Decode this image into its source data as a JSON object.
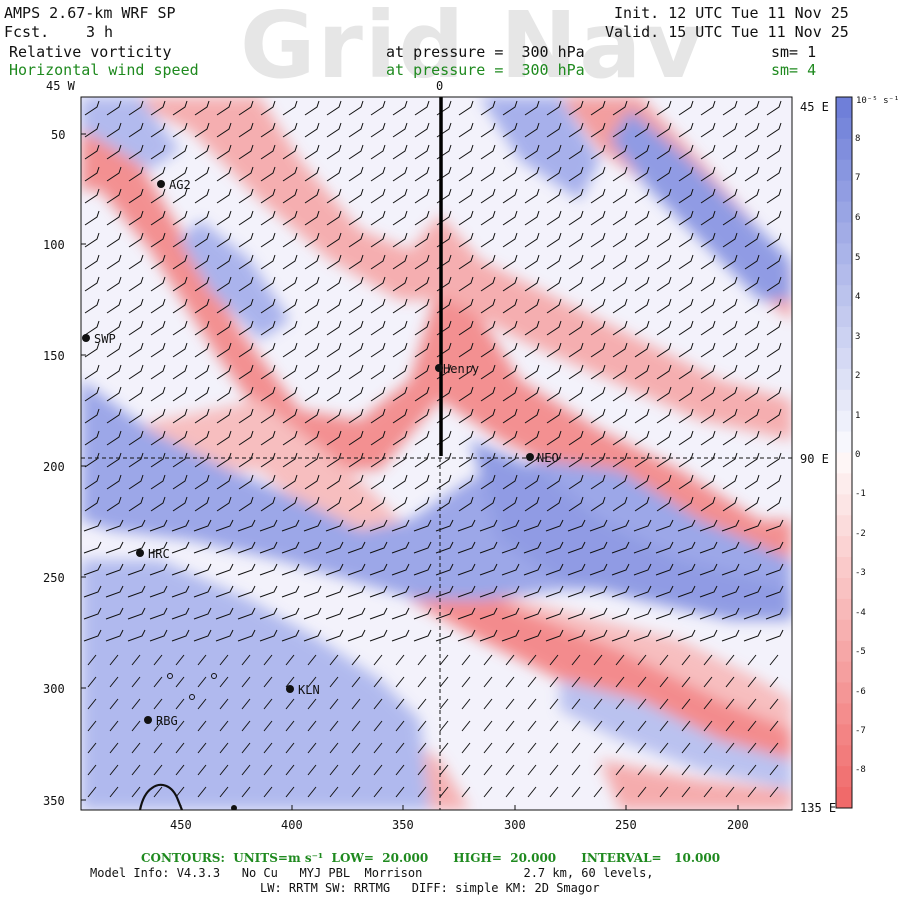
{
  "watermark": "Grid Nav",
  "header": {
    "model": "AMPS 2.67-km WRF SP",
    "fcst_label": "Fcst.",
    "fcst_value": "3 h",
    "init": "Init. 12 UTC Tue 11 Nov 25",
    "valid": "Valid. 15 UTC Tue 11 Nov 25",
    "field1": "Relative vorticity",
    "field1_pressure": "at pressure =  300 hPa",
    "field1_sm": "sm= 1",
    "field2": "Horizontal wind speed",
    "field2_pressure": "at pressure =  300 hPa",
    "field2_sm": "sm= 4"
  },
  "colors": {
    "positive": "#6f7fd9",
    "negative": "#f06a6a",
    "header_green": "#1f8a1f"
  },
  "map": {
    "top_labels": [
      "45 W",
      "0"
    ],
    "right_labels": [
      "45 E",
      "90 E",
      "135 E"
    ],
    "y_ticks": [
      "50",
      "100",
      "150",
      "200",
      "250",
      "300",
      "350"
    ],
    "x_ticks": [
      "450",
      "400",
      "350",
      "300",
      "250",
      "200"
    ],
    "stations": [
      {
        "name": "AG2"
      },
      {
        "name": "SWP"
      },
      {
        "name": "Henry"
      },
      {
        "name": "NEO"
      },
      {
        "name": "HRC"
      },
      {
        "name": "KLN"
      },
      {
        "name": "RBG"
      }
    ]
  },
  "colorbar": {
    "unit": "10⁻⁵ s⁻¹",
    "labels": [
      "8",
      "7",
      "6",
      "5",
      "4",
      "3",
      "2",
      "1",
      "0",
      "-1",
      "-2",
      "-3",
      "-4",
      "-5",
      "-6",
      "-7",
      "-8"
    ]
  },
  "footer": {
    "contours": "CONTOURS:  UNITS=m s⁻¹  LOW=  20.000      HIGH=  20.000      INTERVAL=   10.000",
    "model_info": "Model Info: V4.3.3   No Cu   MYJ PBL  Morrison              2.7 km, 60 levels,",
    "physics": "LW: RRTM SW: RRTMG   DIFF: simple KM: 2D Smagor"
  }
}
